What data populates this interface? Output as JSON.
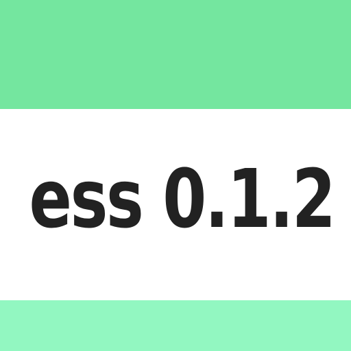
{
  "header": {
    "color": "#74e69f"
  },
  "main": {
    "title_visible": "ess 0.1.2",
    "text_color": "#222222",
    "background": "#ffffff"
  },
  "footer": {
    "color": "#92f7c1"
  }
}
